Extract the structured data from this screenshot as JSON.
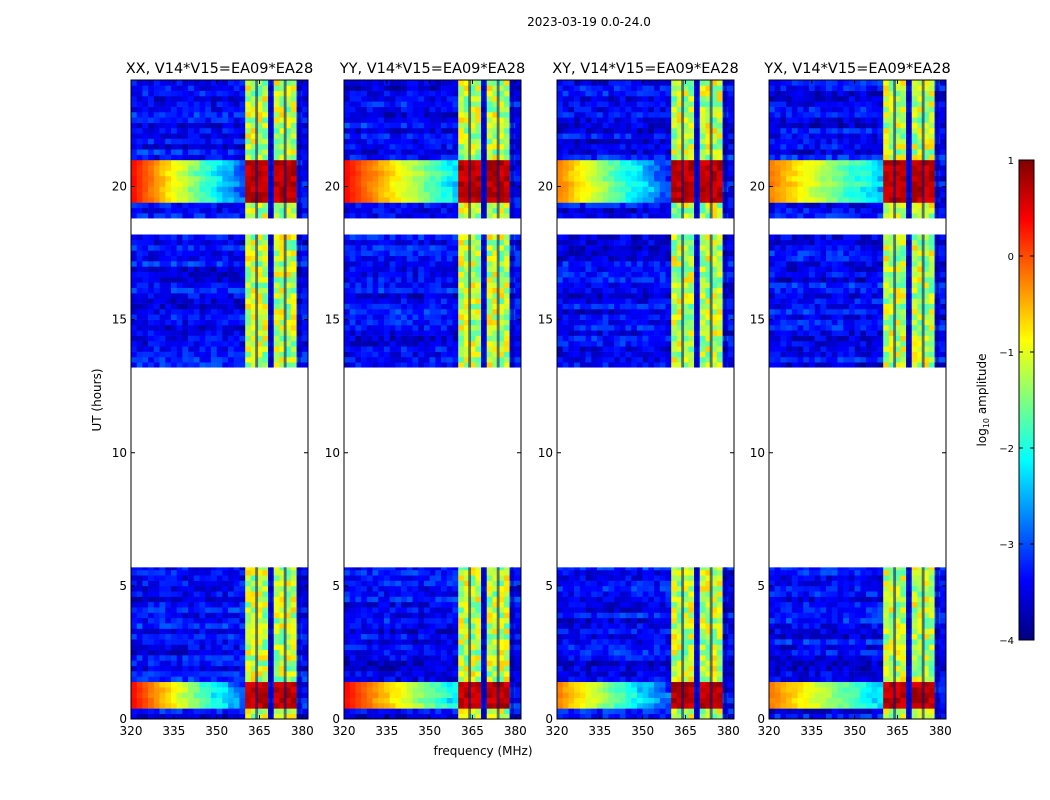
{
  "figure": {
    "suptitle": "2023-03-19 0.0-24.0",
    "xlabel": "frequency (MHz)",
    "ylabel": "UT (hours)"
  },
  "colorbar": {
    "label_main": "log",
    "label_sub": "10",
    "label_rest": " amplitude",
    "range": [
      -4,
      1
    ],
    "ticks": [
      -4,
      -3,
      -2,
      -1,
      0,
      1
    ],
    "tick_labels": [
      "−4",
      "−3",
      "−2",
      "−1",
      "0",
      "1"
    ],
    "stops": [
      "#00007f",
      "#0000ff",
      "#007fff",
      "#00ffff",
      "#7fff7f",
      "#ffff00",
      "#ff7f00",
      "#ff0000",
      "#7f0000"
    ]
  },
  "chart_data": {
    "type": "heatmap",
    "xlim": [
      320,
      382
    ],
    "ylim": [
      0,
      24
    ],
    "xticks": [
      320,
      335,
      350,
      365,
      380
    ],
    "yticks": [
      0,
      5,
      10,
      15,
      20
    ],
    "panels": [
      {
        "title": "XX, V14*V15=EA09*EA28",
        "pol": "XX"
      },
      {
        "title": "YY, V14*V15=EA09*EA28",
        "pol": "YY"
      },
      {
        "title": "XY, V14*V15=EA09*EA28",
        "pol": "XY"
      },
      {
        "title": "YX, V14*V15=EA09*EA28",
        "pol": "YX"
      }
    ],
    "data_blocks_ut": [
      [
        0,
        2.8
      ],
      [
        2.8,
        5.7
      ],
      [
        13.2,
        16.2
      ],
      [
        16.2,
        18.2
      ],
      [
        18.8,
        24
      ]
    ],
    "gaps_ut": [
      [
        5.7,
        13.2
      ],
      [
        18.2,
        18.8
      ]
    ],
    "rfi_band_mhz": [
      359.5,
      379
    ],
    "rfi_channels_mhz": [
      [
        359.5,
        363.5
      ],
      [
        364.5,
        368.5
      ],
      [
        369.5,
        373.5
      ],
      [
        374.5,
        378.5
      ]
    ],
    "strong_rfi_ut": [
      [
        0.5,
        1.5
      ],
      [
        19.5,
        21
      ]
    ],
    "background_log10_amplitude": -3.4,
    "rfi_log10_amplitude_quiet": -1.2,
    "rfi_log10_amplitude_strong": 0.7
  }
}
